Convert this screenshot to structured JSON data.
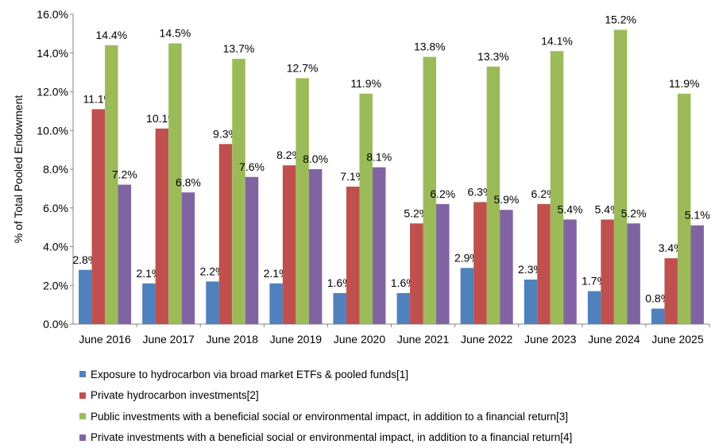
{
  "chart_data": {
    "type": "bar",
    "title": "",
    "xlabel": "",
    "ylabel": "% of Total Pooled Endowment",
    "ylim": [
      0,
      16
    ],
    "yticks": [
      "0.0%",
      "2.0%",
      "4.0%",
      "6.0%",
      "8.0%",
      "10.0%",
      "12.0%",
      "14.0%",
      "16.0%"
    ],
    "grid": false,
    "legend": "bottom",
    "categories": [
      "June 2016",
      "June 2017",
      "June 2018",
      "June 2019",
      "June 2020",
      "June 2021",
      "June 2022",
      "June 2023",
      "June 2024",
      "June 2025"
    ],
    "series": [
      {
        "name": "Exposure to hydrocarbon via broad market ETFs & pooled funds[1]",
        "color": "#4F81BD",
        "values": [
          2.8,
          2.1,
          2.2,
          2.1,
          1.6,
          1.6,
          2.9,
          2.3,
          1.7,
          0.8
        ]
      },
      {
        "name": "Private hydrocarbon investments[2]",
        "color": "#C0504D",
        "values": [
          11.1,
          10.1,
          9.3,
          8.2,
          7.1,
          5.2,
          6.3,
          6.2,
          5.4,
          3.4
        ]
      },
      {
        "name": "Public investments with a beneficial social or environmental impact, in addition to a financial return[3]",
        "color": "#9BBB59",
        "values": [
          14.4,
          14.5,
          13.7,
          12.7,
          11.9,
          13.8,
          13.3,
          14.1,
          15.2,
          11.9
        ]
      },
      {
        "name": "Private investments with a beneficial social or environmental impact, in addition to a financial return[4]",
        "color": "#8064A2",
        "values": [
          7.2,
          6.8,
          7.6,
          8.0,
          8.1,
          6.2,
          5.9,
          5.4,
          5.2,
          5.1
        ]
      }
    ]
  }
}
